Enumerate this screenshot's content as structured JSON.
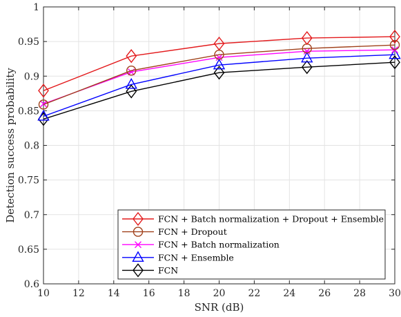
{
  "chart_data": {
    "type": "line",
    "title": "",
    "xlabel": "SNR (dB)",
    "ylabel": "Detection success probability",
    "xlim": [
      10,
      30
    ],
    "ylim": [
      0.6,
      1
    ],
    "xticks": [
      10,
      12,
      14,
      16,
      18,
      20,
      22,
      24,
      26,
      28,
      30
    ],
    "yticks": [
      0.6,
      0.65,
      0.7,
      0.75,
      0.8,
      0.85,
      0.9,
      0.95,
      1
    ],
    "xtick_labels": [
      "10",
      "12",
      "14",
      "16",
      "18",
      "20",
      "22",
      "24",
      "26",
      "28",
      "30"
    ],
    "ytick_labels": [
      "0.6",
      "0.65",
      "0.7",
      "0.75",
      "0.8",
      "0.85",
      "0.9",
      "0.95",
      "1"
    ],
    "grid": true,
    "legend_position": "bottom-right",
    "x": [
      10,
      15,
      20,
      25,
      30
    ],
    "series": [
      {
        "name": "FCN + Batch normalization + Dropout + Ensemble",
        "color": "#e31a1c",
        "marker": "diamond",
        "values": [
          0.879,
          0.929,
          0.947,
          0.955,
          0.957
        ]
      },
      {
        "name": "FCN + Dropout",
        "color": "#a0401a",
        "marker": "circle",
        "values": [
          0.859,
          0.908,
          0.931,
          0.94,
          0.945
        ]
      },
      {
        "name": "FCN + Batch normalization",
        "color": "#ff00ff",
        "marker": "x",
        "values": [
          0.86,
          0.906,
          0.927,
          0.936,
          0.938
        ]
      },
      {
        "name": "FCN + Ensemble",
        "color": "#0000ff",
        "marker": "triangle",
        "values": [
          0.842,
          0.888,
          0.916,
          0.926,
          0.931
        ]
      },
      {
        "name": "FCN",
        "color": "#000000",
        "marker": "diamond",
        "values": [
          0.838,
          0.878,
          0.905,
          0.913,
          0.92
        ]
      }
    ]
  }
}
